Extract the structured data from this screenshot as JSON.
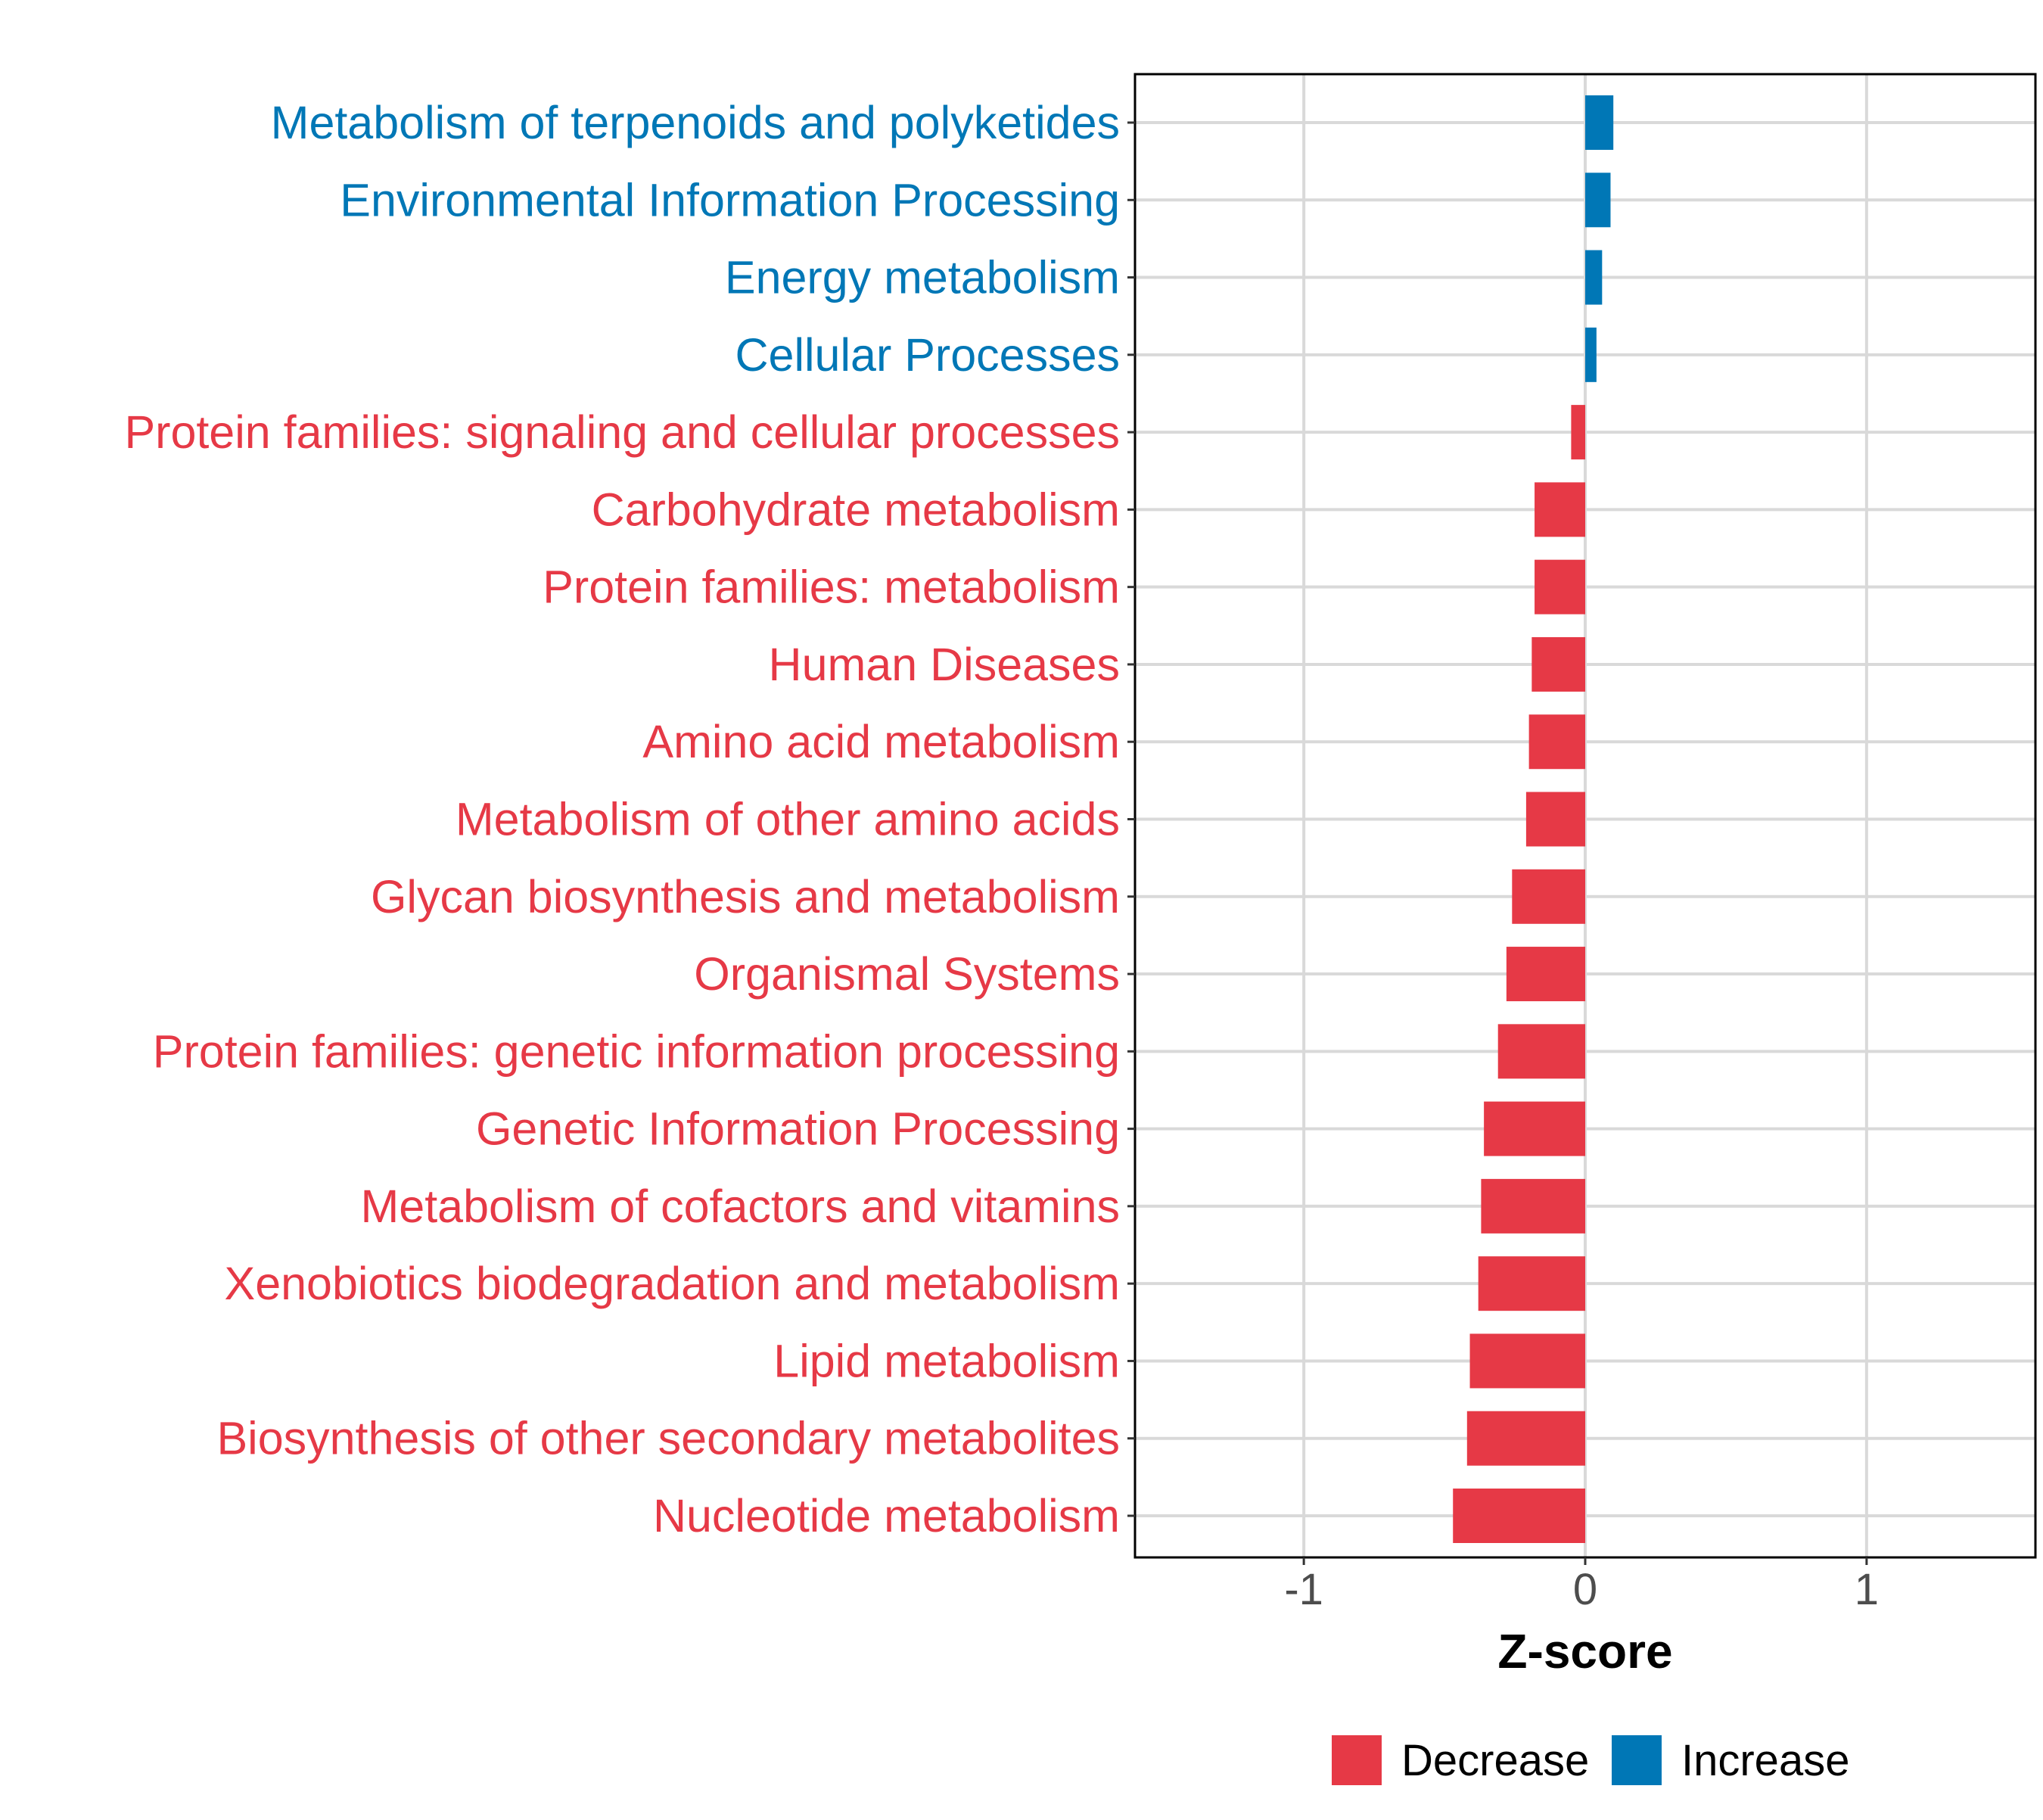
{
  "chart_data": {
    "type": "bar",
    "orientation": "horizontal",
    "xlabel": "Z-score",
    "ylabel": "",
    "xlim": [
      -1.6,
      1.6
    ],
    "xticks": [
      -1,
      0,
      1
    ],
    "xtick_labels": [
      "-1",
      "0",
      "1"
    ],
    "grid": true,
    "legend": {
      "position": "bottom",
      "entries": [
        {
          "label": "Decrease",
          "color": "#E63946"
        },
        {
          "label": "Increase",
          "color": "#0077B6"
        }
      ]
    },
    "categories": [
      "Metabolism of terpenoids and polyketides",
      "Environmental Information Processing",
      "Energy metabolism",
      "Cellular Processes",
      "Protein families: signaling and cellular processes",
      "Carbohydrate metabolism",
      "Protein families: metabolism",
      "Human Diseases",
      "Amino acid metabolism",
      "Metabolism of other amino acids",
      "Glycan biosynthesis and metabolism",
      "Organismal Systems",
      "Protein families: genetic information processing",
      "Genetic Information Processing",
      "Metabolism of cofactors and vitamins",
      "Xenobiotics biodegradation and metabolism",
      "Lipid metabolism",
      "Biosynthesis of other secondary metabolites",
      "Nucleotide metabolism"
    ],
    "values": [
      0.1,
      0.09,
      0.06,
      0.04,
      -0.05,
      -0.18,
      -0.18,
      -0.19,
      -0.2,
      -0.21,
      -0.26,
      -0.28,
      -0.31,
      -0.36,
      -0.37,
      -0.38,
      -0.41,
      -0.42,
      -0.47
    ],
    "groups": [
      "Increase",
      "Increase",
      "Increase",
      "Increase",
      "Decrease",
      "Decrease",
      "Decrease",
      "Decrease",
      "Decrease",
      "Decrease",
      "Decrease",
      "Decrease",
      "Decrease",
      "Decrease",
      "Decrease",
      "Decrease",
      "Decrease",
      "Decrease",
      "Decrease"
    ]
  }
}
